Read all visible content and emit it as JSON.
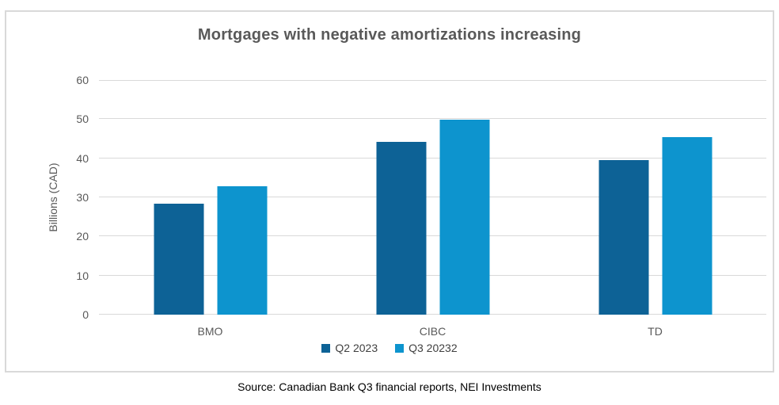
{
  "title": "Mortgages with negative amortizations increasing",
  "y_axis_label": "Billions (CAD)",
  "source": "Source: Canadian Bank Q3 financial reports, NEI Investments",
  "chart_data": {
    "type": "bar",
    "categories": [
      "BMO",
      "CIBC",
      "TD"
    ],
    "series": [
      {
        "name": "Q2 2023",
        "color": "#0d6296",
        "values": [
          28.3,
          44.1,
          39.6
        ]
      },
      {
        "name": "Q3 20232",
        "color": "#0d94ce",
        "values": [
          32.8,
          49.8,
          45.5
        ]
      }
    ],
    "title": "Mortgages with negative amortizations increasing",
    "xlabel": "",
    "ylabel": "Billions (CAD)",
    "ylim": [
      0,
      60
    ],
    "yticks": [
      0,
      10,
      20,
      30,
      40,
      50,
      60
    ],
    "grid": true,
    "legend_position": "bottom"
  }
}
